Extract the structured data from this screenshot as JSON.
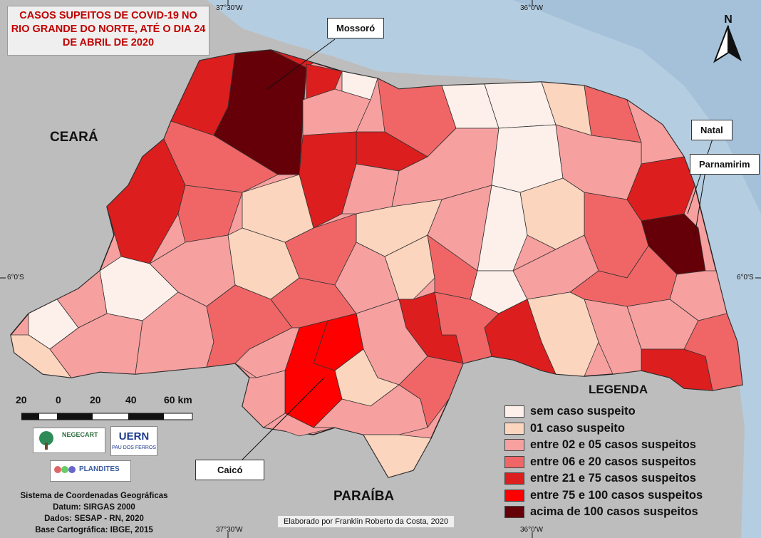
{
  "title": {
    "line1": "CASOS SUPEITOS DE COVID-19 NO",
    "line2": "RIO GRANDE DO NORTE, ATÉ O DIA 24",
    "line3": "DE ABRIL DE 2020"
  },
  "grid_labels": {
    "lon_left_top": "37°30'W",
    "lon_right_top": "36°0'W",
    "lon_left_bottom": "37°30'W",
    "lon_right_bottom": "36°0'W",
    "lat_left": "6°0'S",
    "lat_right": "6°0'S"
  },
  "neighbors": {
    "ceara": "CEARÁ",
    "paraiba": "PARAÍBA"
  },
  "callouts": {
    "mossoro": "Mossoró",
    "natal": "Natal",
    "parnamirim": "Parnamirim",
    "caico": "Caicó"
  },
  "north": "N",
  "scale_bar": {
    "labels": [
      "20",
      "0",
      "20",
      "40",
      "60 km"
    ]
  },
  "legend": {
    "title": "LEGENDA",
    "items": [
      {
        "label": "sem caso suspeito",
        "color": "#fdf0ea"
      },
      {
        "label": "01 caso suspeito",
        "color": "#fcd5bf"
      },
      {
        "label": "entre 02 e 05 casos suspeitos",
        "color": "#f7a0a0"
      },
      {
        "label": "entre 06 e 20 casos suspeitos",
        "color": "#f06666"
      },
      {
        "label": "entre 21 e 75 casos suspeitos",
        "color": "#dc1e1e"
      },
      {
        "label": "entre 75 e 100 casos suspeitos",
        "color": "#ff0000"
      },
      {
        "label": "acima de 100 casos suspeitos",
        "color": "#650008"
      }
    ]
  },
  "logos": {
    "negecart": "NEGECART",
    "uern": "UERN",
    "uern_sub": "PAU DOS FERROS",
    "plandites": "PLANDITES"
  },
  "credits": {
    "line1": "Sistema de Coordenadas Geográficas",
    "line2": "Datum: SIRGAS 2000",
    "line3": "Dados: SESAP - RN, 2020",
    "line4": "Base Cartográfica: IBGE, 2015"
  },
  "elaborado": "Elaborado por Franklin Roberto da Costa, 2020",
  "colors": {
    "ocean": "#b5cde0",
    "land_other": "#bdbdbd",
    "border": "#222222"
  }
}
